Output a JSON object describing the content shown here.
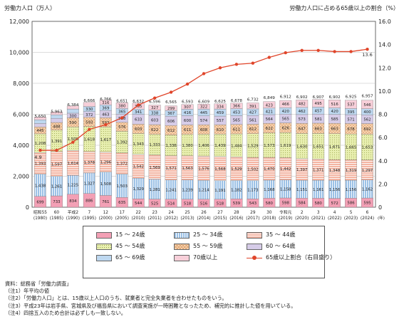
{
  "chart_data": {
    "type": "bar",
    "title": "",
    "ylabel_left": "労働力人口（万人）",
    "ylabel_right": "労働力人口に占める65歳以上の割合（%）",
    "ylim_left": [
      0,
      12000
    ],
    "ylim_right": [
      0,
      16.0
    ],
    "yticks_left": [
      "0",
      "2,000",
      "4,000",
      "6,000",
      "8,000",
      "10,000",
      "12,000"
    ],
    "yticks_right": [
      "0",
      "2.0",
      "4.0",
      "6.0",
      "8.0",
      "10.0",
      "12.0",
      "14.0",
      "16.0"
    ],
    "x_unit": "(年)",
    "categories": [
      {
        "era": "昭和55",
        "year": "(1980)"
      },
      {
        "era": "60",
        "year": "(1985)"
      },
      {
        "era": "平成2",
        "year": "(1990)"
      },
      {
        "era": "7",
        "year": "(1995)"
      },
      {
        "era": "12",
        "year": "(2000)"
      },
      {
        "era": "17",
        "year": "(2005)"
      },
      {
        "era": "22",
        "year": "(2010)"
      },
      {
        "era": "23",
        "year": "(2011)"
      },
      {
        "era": "24",
        "year": "(2012)"
      },
      {
        "era": "25",
        "year": "(2013)"
      },
      {
        "era": "26",
        "year": "(2014)"
      },
      {
        "era": "27",
        "year": "(2015)"
      },
      {
        "era": "28",
        "year": "(2016)"
      },
      {
        "era": "29",
        "year": "(2017)"
      },
      {
        "era": "30",
        "year": "(2018)"
      },
      {
        "era": "令和元",
        "year": "(2019)"
      },
      {
        "era": "2",
        "year": "(2020)"
      },
      {
        "era": "3",
        "year": "(2021)"
      },
      {
        "era": "4",
        "year": "(2022)"
      },
      {
        "era": "5",
        "year": "(2023)"
      },
      {
        "era": "6",
        "year": "(2024)"
      }
    ],
    "totals": [
      "5,650",
      "5,963",
      "6,384",
      "6,666",
      "6,766",
      "6,651",
      "6,632",
      "6,596",
      "6,565",
      "6,593",
      "6,609",
      "6,625",
      "6,678",
      "6,732",
      "6,849",
      "6,912",
      "6,902",
      "6,907",
      "6,902",
      "6,925",
      "6,957"
    ],
    "total_values": [
      5650,
      5963,
      6384,
      6666,
      6766,
      6651,
      6632,
      6596,
      6565,
      6593,
      6609,
      6625,
      6678,
      6732,
      6849,
      6912,
      6902,
      6907,
      6902,
      6925,
      6957
    ],
    "series": [
      {
        "name": "15～24歳",
        "key": "a15",
        "color": "#f3a0b5",
        "pattern": "none",
        "values": [
          699,
          733,
          834,
          886,
          761,
          635,
          544,
          525,
          514,
          518,
          516,
          518,
          539,
          543,
          580,
          598,
          584,
          580,
          572,
          586,
          595
        ]
      },
      {
        "name": "25～34歳",
        "key": "a25",
        "color": "#9cc1e6",
        "pattern": "vlines",
        "values": [
          1438,
          1261,
          1225,
          1327,
          1508,
          1503,
          1329,
          1281,
          1241,
          1239,
          1214,
          1191,
          1182,
          1173,
          1168,
          1158,
          1151,
          1161,
          1156,
          1156,
          1162
        ]
      },
      {
        "name": "35～44歳",
        "key": "a35",
        "color": "#f4b4a2",
        "pattern": "hlines",
        "values": [
          1393,
          1597,
          1614,
          1378,
          1296,
          1372,
          1542,
          1569,
          1571,
          1563,
          1576,
          1568,
          1529,
          1502,
          1470,
          1442,
          1397,
          1371,
          1348,
          1319,
          1297
        ]
      },
      {
        "name": "45～54歳",
        "key": "a45",
        "color": "#e8efb0",
        "pattern": "dots",
        "values": [
          1208,
          1391,
          1508,
          1618,
          1617,
          1392,
          1343,
          1333,
          1336,
          1380,
          1406,
          1439,
          1484,
          1529,
          1573,
          1619,
          1630,
          1651,
          1671,
          1665,
          1653
        ]
      },
      {
        "name": "55～59歳",
        "key": "a55",
        "color": "#f7d3b0",
        "pattern": "cross",
        "values": [
          445,
          488,
          590,
          593,
          593,
          576,
          603,
          622,
          612,
          611,
          608,
          610,
          611,
          612,
          622,
          626,
          647,
          663,
          663,
          678,
          692
        ]
      },
      {
        "name": "60～64歳",
        "key": "a60",
        "color": "#d6cce8",
        "pattern": "none",
        "values": [
          223,
          266,
          300,
          372,
          463,
          528,
          633,
          603,
          606,
          600,
          574,
          557,
          565,
          561,
          564,
          565,
          573,
          581,
          585,
          571,
          562
        ]
      },
      {
        "name": "65～69歳",
        "key": "a65",
        "color": "#bed8f0",
        "pattern": "none",
        "values": [
          240,
          232,
          270,
          330,
          369,
          365,
          341,
          338,
          367,
          416,
          445,
          459,
          453,
          427,
          421,
          420,
          462,
          457,
          420,
          395,
          400
        ]
      },
      {
        "name": "70歳以上",
        "key": "a70",
        "color": "#f7cfd9",
        "pattern": "none",
        "values": [
          174,
          187,
          198,
          262,
          316,
          380,
          385,
          327,
          299,
          307,
          322,
          334,
          366,
          391,
          423,
          466,
          482,
          495,
          516,
          537,
          546
        ]
      }
    ],
    "line_series": {
      "name": "65歳以上割合（右目盛り）",
      "color": "#e0452a",
      "values": [
        4.9,
        4.9,
        5.6,
        6.7,
        7.1,
        7.7,
        8.8,
        9.4,
        9.9,
        10.6,
        11.5,
        12.0,
        12.3,
        12.4,
        12.9,
        13.3,
        13.5,
        13.5,
        13.4,
        13.4,
        13.6
      ],
      "labels": [
        {
          "index": 0,
          "text": "4.9"
        },
        {
          "index": 20,
          "text": "13.6"
        }
      ]
    },
    "legend_position": "bottom-center",
    "grid": true
  },
  "legend_labels": {
    "a15": "15 ～ 24歳",
    "a25": "25 ～ 34歳",
    "a35": "35 ～ 44歳",
    "a45": "45 ～ 54歳",
    "a55": "55 ～ 59歳",
    "a60": "60 ～ 64歳",
    "a65": "65 ～ 69歳",
    "a70": "70歳以上",
    "line": "65歳以上割合（右目盛り）"
  },
  "notes": [
    "資料：総務省「労働力調査」",
    "（注1）年平均の値",
    "（注2）「労働力人口」とは、15歳以上人口のうち、就業者と完全失業者を合わせたものをいう。",
    "（注3）平成23年は岩手県、宮城県及び福島県において調査実施が一時困難となったため、補完的に推計した値を用いている。",
    "（注4）四捨五入のため合計は必ずしも一致しない。"
  ]
}
